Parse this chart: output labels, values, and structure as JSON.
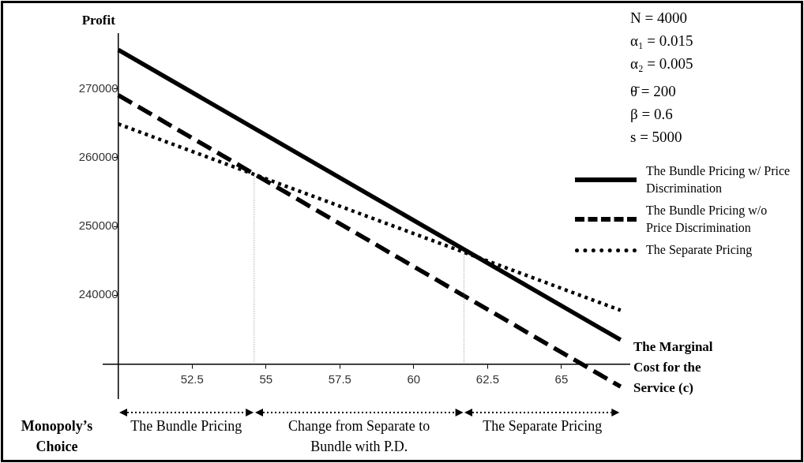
{
  "chart_data": {
    "type": "line",
    "xlabel": "The Marginal Cost for the Service (c)",
    "ylabel": "Profit",
    "x": [
      50,
      67
    ],
    "series": [
      {
        "name": "The Bundle Pricing w/ Price Discrimination",
        "color": "#000000",
        "line_style": "solid",
        "values": [
          275700,
          233500
        ]
      },
      {
        "name": "The Bundle Pricing w/o Price Discrimination",
        "color": "#000000",
        "line_style": "dashed",
        "values": [
          269100,
          226700
        ]
      },
      {
        "name": "The Separate Pricing",
        "color": "#000000",
        "line_style": "dotted",
        "values": [
          264900,
          237800
        ]
      }
    ],
    "xlim": [
      49.5,
      67.3
    ],
    "ylim": [
      225000,
      278000
    ],
    "xticks": [
      {
        "value": 50,
        "label": null
      },
      {
        "value": 52.5,
        "label": "52.5"
      },
      55,
      {
        "value": 57.5,
        "label": "57.5"
      },
      60,
      {
        "value": 62.5,
        "label": "62.5"
      },
      65
    ],
    "yticks": [
      {
        "value": 230000,
        "label": null
      },
      240000,
      250000,
      260000,
      270000
    ],
    "grid": false,
    "legend": "right",
    "ref_lines": [
      {
        "axis": "x",
        "value": 54.6,
        "color": "#808080",
        "line_style": "dotted"
      },
      {
        "axis": "x",
        "value": 61.7,
        "color": "#808080",
        "line_style": "dotted"
      }
    ],
    "annotations": [
      "N = 4000",
      "α₁ = 0.015",
      "α₂ = 0.005",
      "θ̄ = 200",
      "β = 0.6",
      "s = 5000",
      "Monopoly’s Choice",
      "The Bundle Pricing",
      "Change from Separate to Bundle with P.D.",
      "The Separate Pricing"
    ]
  }
}
